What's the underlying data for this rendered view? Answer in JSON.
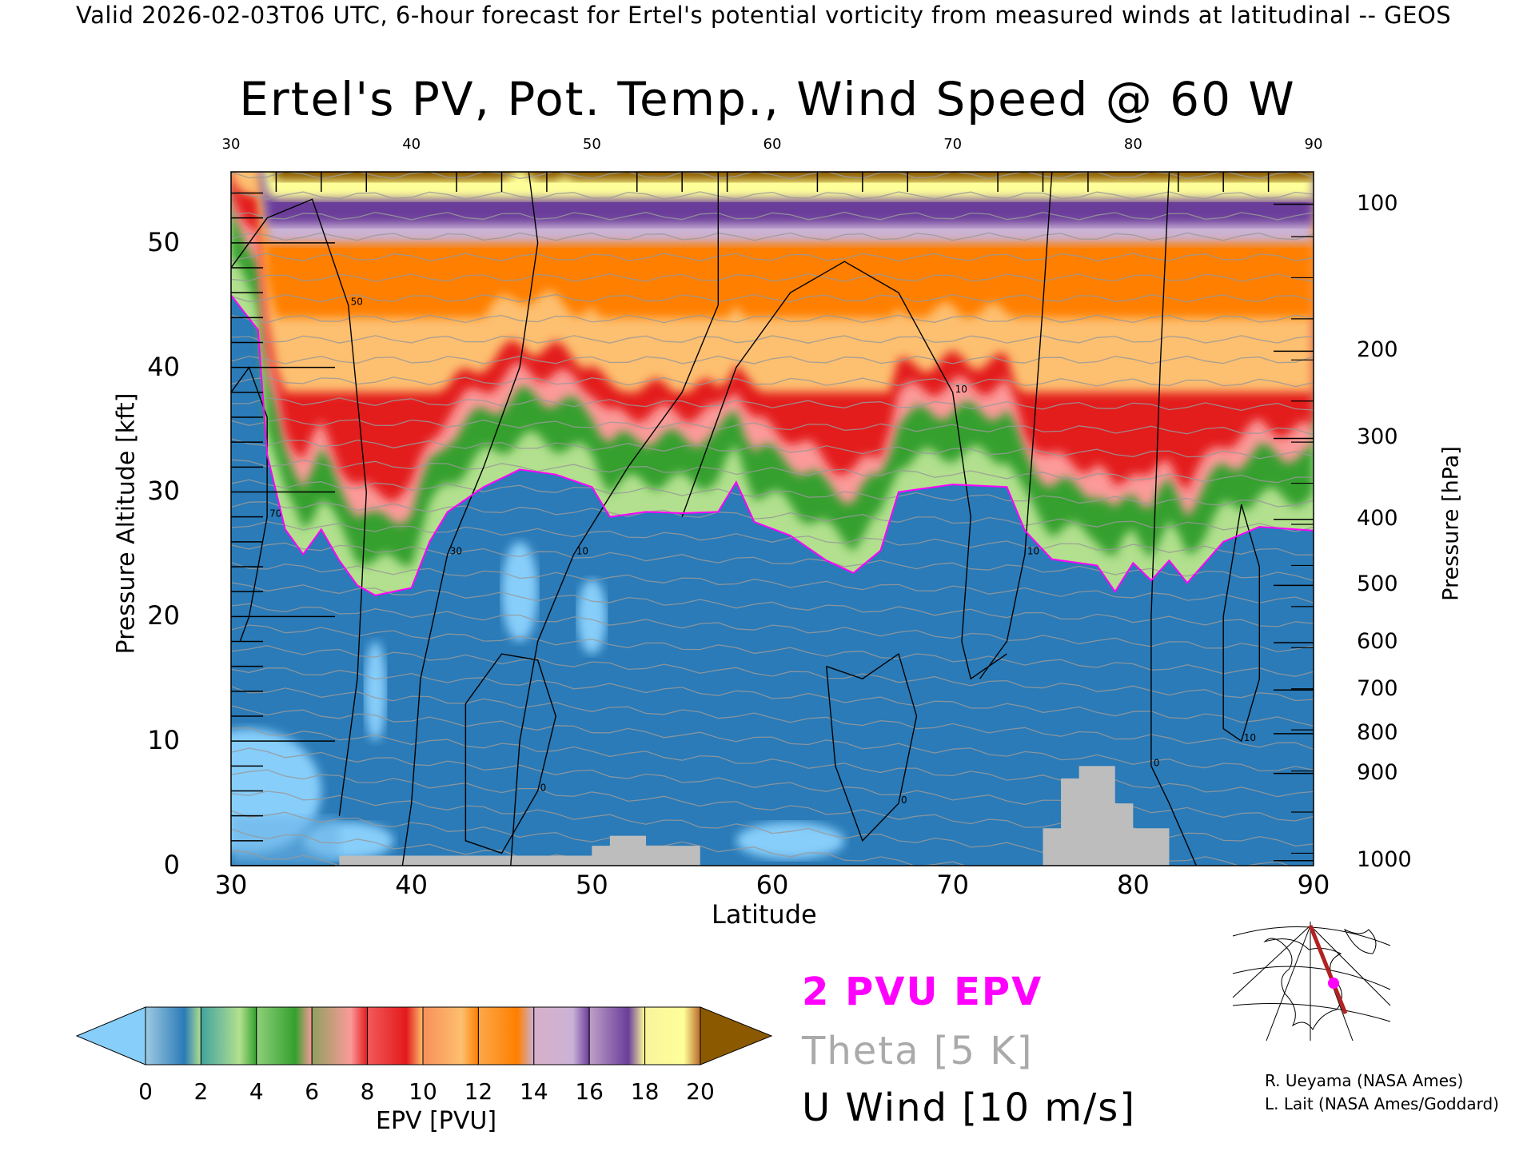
{
  "header": {
    "top_title": "Valid 2026-02-03T06 UTC, 6-hour forecast for Ertel's potential vorticity from measured winds at latitudinal -- GEOS",
    "main_title": "Ertel's PV, Pot. Temp., Wind Speed @ 60 W"
  },
  "legend": {
    "pv": "2 PVU EPV",
    "theta": "Theta [5 K]",
    "u": "U Wind [10 m/s]"
  },
  "credits": [
    "R. Ueyama (NASA Ames)",
    "L. Lait (NASA Ames/Goddard)"
  ],
  "chart_data": {
    "type": "heatmap",
    "title": "Ertel's PV, Pot. Temp., Wind Speed @ 60 W",
    "xlabel": "Latitude",
    "ylabel": "Pressure Altitude [kft]",
    "y2label": "Pressure [hPa]",
    "xlim": [
      30,
      90
    ],
    "ylim": [
      0,
      55.7
    ],
    "x_ticks": [
      "30",
      "40",
      "50",
      "60",
      "70",
      "80",
      "90"
    ],
    "x_tick_values": [
      30,
      40,
      50,
      60,
      70,
      80,
      90
    ],
    "y_ticks": [
      "0",
      "10",
      "20",
      "30",
      "40",
      "50"
    ],
    "y_tick_values": [
      0,
      10,
      20,
      30,
      40,
      50
    ],
    "pressure_ticks": [
      "100",
      "200",
      "300",
      "400",
      "500",
      "600",
      "700",
      "800",
      "900",
      "1000"
    ],
    "pressure_tick_kft": [
      53.1,
      41.3,
      34.3,
      27.8,
      22.5,
      17.9,
      14.1,
      10.6,
      7.4,
      0.4
    ],
    "colorbar": {
      "label": "EPV [PVU]",
      "ticks": [
        "0",
        "2",
        "4",
        "6",
        "8",
        "10",
        "12",
        "14",
        "16",
        "18",
        "20"
      ],
      "colors": [
        "#2a7bb8",
        "#b2e08e",
        "#34a02e",
        "#fb9a99",
        "#e31a1c",
        "#fdbf6f",
        "#ff7f00",
        "#cab2d6",
        "#6a3d9a",
        "#ffff99"
      ],
      "under_color": "#87cefa",
      "over_color": "#8b5a00"
    },
    "pv2_contour_kft": [
      [
        30,
        45.8
      ],
      [
        31.5,
        43
      ],
      [
        32,
        33
      ],
      [
        33,
        27
      ],
      [
        34,
        25
      ],
      [
        35,
        27
      ],
      [
        36,
        24.5
      ],
      [
        37,
        22.5
      ],
      [
        38,
        21.7
      ],
      [
        40,
        22.3
      ],
      [
        41,
        26
      ],
      [
        42,
        28.4
      ],
      [
        44,
        30.4
      ],
      [
        46,
        31.8
      ],
      [
        48,
        31.4
      ],
      [
        50,
        30.4
      ],
      [
        51,
        28
      ],
      [
        53,
        28.4
      ],
      [
        55,
        28.3
      ],
      [
        57,
        28.4
      ],
      [
        58,
        30.8
      ],
      [
        59,
        27.6
      ],
      [
        61,
        26.5
      ],
      [
        63,
        24.5
      ],
      [
        64.5,
        23.5
      ],
      [
        66,
        25.3
      ],
      [
        67,
        30
      ],
      [
        70,
        30.6
      ],
      [
        73,
        30.4
      ],
      [
        74,
        26.9
      ],
      [
        75.5,
        24.6
      ],
      [
        78,
        24.1
      ],
      [
        79,
        22
      ],
      [
        80,
        24.3
      ],
      [
        81,
        22.9
      ],
      [
        82,
        24.5
      ],
      [
        83,
        22.7
      ],
      [
        85,
        26
      ],
      [
        87,
        27.2
      ],
      [
        90,
        26.9
      ]
    ],
    "terrain_kft": [
      [
        30,
        0
      ],
      [
        36,
        0
      ],
      [
        36,
        0.8
      ],
      [
        50,
        0.8
      ],
      [
        50,
        1.6
      ],
      [
        51,
        1.6
      ],
      [
        51,
        2.4
      ],
      [
        53,
        2.4
      ],
      [
        53,
        1.6
      ],
      [
        56,
        1.6
      ],
      [
        56,
        0
      ],
      [
        75,
        0
      ],
      [
        75,
        3
      ],
      [
        76,
        3
      ],
      [
        76,
        7
      ],
      [
        77,
        7
      ],
      [
        77,
        8
      ],
      [
        79,
        8
      ],
      [
        79,
        5
      ],
      [
        80,
        5
      ],
      [
        80,
        3
      ],
      [
        82,
        3
      ],
      [
        82,
        0
      ],
      [
        90,
        0
      ]
    ],
    "u_wind_contours": [
      {
        "label": "30",
        "points": [
          [
            46.5,
            55.7
          ],
          [
            47,
            50
          ],
          [
            46,
            40
          ],
          [
            44,
            32
          ],
          [
            42,
            25
          ],
          [
            40.5,
            15
          ],
          [
            40,
            5
          ],
          [
            39.5,
            0
          ]
        ]
      },
      {
        "label": "10",
        "points": [
          [
            57,
            55.7
          ],
          [
            57,
            45
          ],
          [
            55,
            38
          ],
          [
            52,
            32
          ],
          [
            49,
            25
          ],
          [
            47,
            18
          ],
          [
            46,
            10
          ],
          [
            45.5,
            0
          ]
        ]
      },
      {
        "label": "10",
        "points": [
          [
            55,
            28
          ],
          [
            58,
            40
          ],
          [
            61,
            46
          ],
          [
            64,
            48.5
          ],
          [
            67,
            46
          ],
          [
            70,
            38
          ],
          [
            71,
            28
          ],
          [
            70.5,
            18
          ],
          [
            71,
            15
          ],
          [
            73,
            17
          ]
        ]
      },
      {
        "label": "10",
        "points": [
          [
            75.5,
            55.7
          ],
          [
            75,
            45
          ],
          [
            74.5,
            35
          ],
          [
            74,
            25
          ],
          [
            73,
            18
          ],
          [
            71.5,
            15
          ]
        ]
      },
      {
        "label": "0",
        "points": [
          [
            82,
            55.7
          ],
          [
            81.5,
            40
          ],
          [
            81,
            20
          ],
          [
            81,
            8
          ],
          [
            82,
            5
          ],
          [
            83.5,
            0
          ]
        ]
      },
      {
        "label": "50",
        "points": [
          [
            30,
            48
          ],
          [
            32,
            52
          ],
          [
            34.5,
            53.5
          ],
          [
            36.5,
            45
          ],
          [
            37.5,
            30
          ],
          [
            37,
            15
          ],
          [
            36,
            4
          ]
        ]
      },
      {
        "label": "70",
        "points": [
          [
            30,
            38
          ],
          [
            31,
            40
          ],
          [
            32,
            36
          ],
          [
            32,
            28
          ],
          [
            31,
            20
          ],
          [
            30.5,
            18
          ]
        ]
      },
      {
        "label": "0",
        "points": [
          [
            43,
            13
          ],
          [
            45,
            17
          ],
          [
            47,
            16.5
          ],
          [
            48,
            12
          ],
          [
            47,
            6
          ],
          [
            45,
            1
          ],
          [
            43,
            2
          ],
          [
            43,
            8
          ],
          [
            43,
            13
          ]
        ]
      },
      {
        "label": "0",
        "points": [
          [
            63,
            16
          ],
          [
            65,
            15
          ],
          [
            67,
            17
          ],
          [
            68,
            12
          ],
          [
            67,
            5
          ],
          [
            65,
            2
          ],
          [
            63.5,
            8
          ],
          [
            63,
            16
          ]
        ]
      },
      {
        "label": "10",
        "points": [
          [
            86,
            29
          ],
          [
            87,
            24
          ],
          [
            87,
            15
          ],
          [
            86,
            10
          ],
          [
            85,
            11
          ],
          [
            85,
            20
          ],
          [
            86,
            29
          ]
        ]
      }
    ]
  }
}
